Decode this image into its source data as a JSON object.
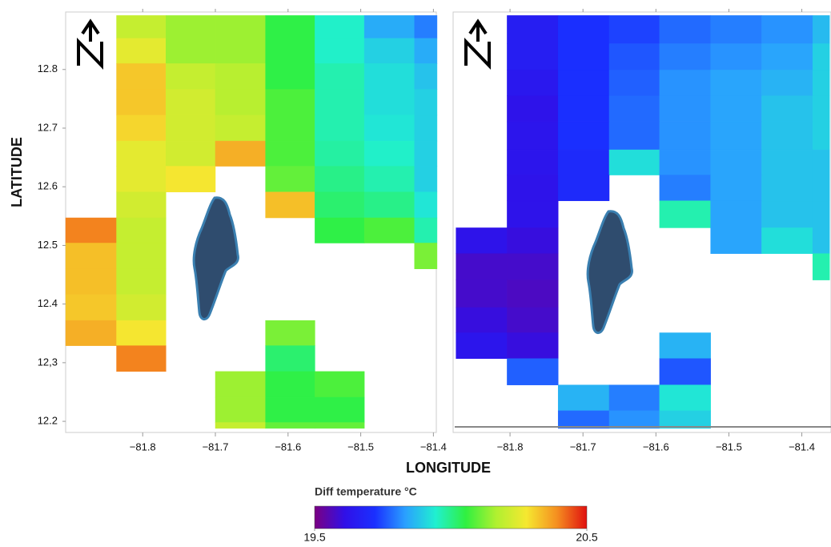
{
  "figure": {
    "x_label": "LONGITUDE",
    "y_label": "LATITUDE"
  },
  "colorbar": {
    "title": "Diff temperature °C",
    "clim": [
      19.5,
      20.5
    ],
    "ticks": [
      19.5,
      20.5
    ],
    "colors": [
      "#7b0082",
      "#3010e8",
      "#1a30ff",
      "#2aa0ff",
      "#20f0d0",
      "#30f040",
      "#b0f030",
      "#f5e830",
      "#f59020",
      "#e01010"
    ]
  },
  "chart_data": [
    {
      "type": "heatmap",
      "xlim": [
        -81.906,
        -81.396
      ],
      "ylim": [
        12.181,
        12.898
      ],
      "xticks": [
        {
          "value": -81.8,
          "label": "−81.8"
        },
        {
          "value": -81.7,
          "label": "−81.7"
        },
        {
          "value": -81.6,
          "label": "−81.6"
        },
        {
          "value": -81.5,
          "label": "−81.5"
        },
        {
          "value": -81.4,
          "label": "−81.4"
        }
      ],
      "yticks": [
        {
          "value": 12.2,
          "label": "12.2"
        },
        {
          "value": 12.3,
          "label": "12,3"
        },
        {
          "value": 12.4,
          "label": "12.4"
        },
        {
          "value": 12.5,
          "label": "12.5"
        },
        {
          "value": 12.6,
          "label": "12.6"
        },
        {
          "value": 12.7,
          "label": "12.7"
        },
        {
          "value": 12.8,
          "label": "12.8"
        }
      ],
      "x_edges": [
        -81.906,
        -81.836,
        -81.768,
        -81.7,
        -81.631,
        -81.563,
        -81.495,
        -81.426,
        -81.395
      ],
      "y_edges": [
        12.892,
        12.853,
        12.81,
        12.766,
        12.722,
        12.678,
        12.635,
        12.591,
        12.547,
        12.504,
        12.46,
        12.416,
        12.372,
        12.329,
        12.285,
        12.241,
        12.198,
        12.188
      ],
      "values": [
        [
          null,
          20.2,
          20.15,
          20.15,
          20.05,
          19.95,
          19.85,
          19.8
        ],
        [
          null,
          20.25,
          20.15,
          20.15,
          20.05,
          19.95,
          19.9,
          19.85
        ],
        [
          null,
          20.32,
          20.2,
          20.18,
          20.05,
          19.97,
          19.92,
          19.88
        ],
        [
          null,
          20.32,
          20.22,
          20.18,
          20.08,
          19.97,
          19.92,
          19.9
        ],
        [
          null,
          20.3,
          20.22,
          20.2,
          20.08,
          19.97,
          19.93,
          19.9
        ],
        [
          null,
          20.25,
          20.22,
          20.35,
          20.08,
          19.98,
          19.95,
          19.9
        ],
        [
          null,
          20.25,
          20.28,
          null,
          20.1,
          20.0,
          19.97,
          19.9
        ],
        [
          null,
          20.22,
          null,
          null,
          20.33,
          20.02,
          20.0,
          19.93
        ],
        [
          20.4,
          20.2,
          null,
          null,
          null,
          20.05,
          20.08,
          19.97
        ],
        [
          20.33,
          20.2,
          null,
          null,
          null,
          null,
          null,
          20.12
        ],
        [
          20.33,
          20.2,
          null,
          null,
          null,
          null,
          null,
          null
        ],
        [
          20.32,
          20.22,
          null,
          null,
          null,
          null,
          null,
          null
        ],
        [
          20.35,
          20.28,
          null,
          null,
          20.12,
          null,
          null,
          null
        ],
        [
          null,
          20.4,
          null,
          null,
          20.02,
          null,
          null,
          null
        ],
        [
          null,
          null,
          null,
          20.15,
          20.05,
          20.08,
          null,
          null
        ],
        [
          null,
          null,
          null,
          20.15,
          20.05,
          20.05,
          null,
          null
        ],
        [
          null,
          null,
          null,
          20.2,
          20.1,
          20.1,
          null,
          null
        ]
      ]
    },
    {
      "type": "heatmap",
      "xlim": [
        -81.878,
        -81.36
      ],
      "ylim": [
        12.181,
        12.898
      ],
      "xticks": [
        {
          "value": -81.8,
          "label": "−81.8"
        },
        {
          "value": -81.7,
          "label": "−81.7"
        },
        {
          "value": -81.6,
          "label": "−81.6"
        },
        {
          "value": -81.5,
          "label": "−81.5"
        },
        {
          "value": -81.4,
          "label": "−81.4"
        }
      ],
      "x_edges": [
        -81.874,
        -81.804,
        -81.734,
        -81.664,
        -81.595,
        -81.525,
        -81.455,
        -81.385,
        -81.362
      ],
      "y_edges": [
        12.892,
        12.844,
        12.799,
        12.755,
        12.711,
        12.663,
        12.62,
        12.576,
        12.53,
        12.486,
        12.441,
        12.394,
        12.351,
        12.307,
        12.262,
        12.218,
        12.188
      ],
      "values": [
        [
          null,
          19.66,
          19.72,
          19.74,
          19.78,
          19.8,
          19.82,
          19.87
        ],
        [
          null,
          19.66,
          19.72,
          19.76,
          19.8,
          19.82,
          19.84,
          19.9
        ],
        [
          null,
          19.64,
          19.72,
          19.77,
          19.82,
          19.84,
          19.86,
          19.9
        ],
        [
          null,
          19.62,
          19.72,
          19.78,
          19.82,
          19.84,
          19.88,
          19.9
        ],
        [
          null,
          19.63,
          19.72,
          19.78,
          19.82,
          19.84,
          19.88,
          19.9
        ],
        [
          null,
          19.63,
          19.7,
          19.92,
          19.82,
          19.84,
          19.88,
          19.88
        ],
        [
          null,
          19.62,
          19.7,
          null,
          19.8,
          19.84,
          19.88,
          19.88
        ],
        [
          null,
          19.62,
          null,
          null,
          19.97,
          19.84,
          19.88,
          19.88
        ],
        [
          19.62,
          19.6,
          null,
          null,
          null,
          19.84,
          19.92,
          19.88
        ],
        [
          19.58,
          19.58,
          null,
          null,
          null,
          null,
          null,
          19.97
        ],
        [
          19.58,
          19.57,
          null,
          null,
          null,
          null,
          null,
          null
        ],
        [
          19.6,
          19.58,
          null,
          null,
          null,
          null,
          null,
          null
        ],
        [
          19.63,
          19.6,
          null,
          null,
          19.86,
          null,
          null,
          null
        ],
        [
          null,
          19.77,
          null,
          null,
          19.76,
          null,
          null,
          null
        ],
        [
          null,
          null,
          19.86,
          19.8,
          19.93,
          null,
          null,
          null
        ],
        [
          null,
          null,
          19.78,
          19.82,
          19.9,
          null,
          null,
          null
        ]
      ]
    }
  ]
}
